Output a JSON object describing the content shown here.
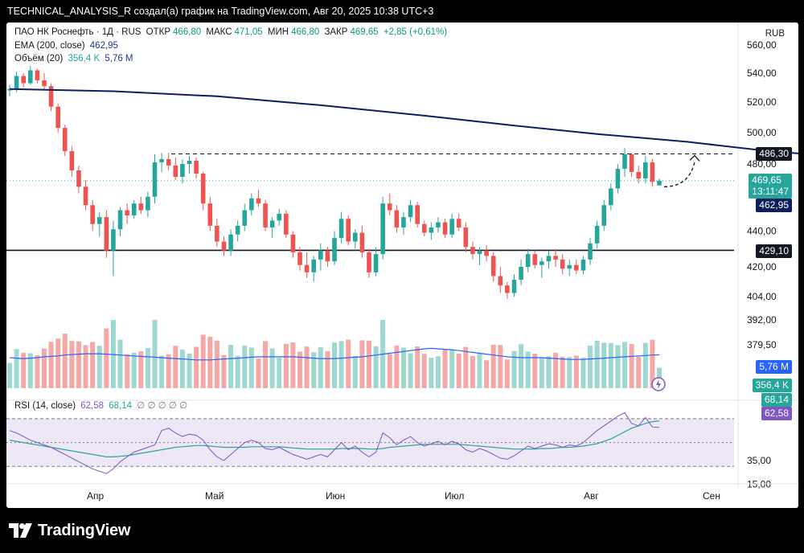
{
  "header": {
    "caption": "TECHNICAL_ANALYSIS_R создал(а) график на TradingView.com, Авг 20, 2025 10:38 UTC+3"
  },
  "legend": {
    "symbol": "ПАО НК Роснефть · 1Д · RUS",
    "open_label": "ОТКР",
    "open": "466,80",
    "high_label": "МАКС",
    "high": "471,05",
    "low_label": "МИН",
    "low": "466,80",
    "close_label": "ЗАКР",
    "close": "469,65",
    "change": "+2,85 (+0,61%)",
    "ema_label": "EMA (200, close)",
    "ema_value": "462,95",
    "volume_label": "Объём (20)",
    "volume_value": "356,4 K",
    "volume_ma_value": "5,76 M",
    "rsi_label": "RSI (14, close)",
    "rsi_value": "62,58",
    "rsi_ma_value": "68,14",
    "rsi_hidden": "∅ ∅ ∅ ∅ ∅"
  },
  "currency": "RUB",
  "price_axis": {
    "ticks": [
      "560,00",
      "540,00",
      "520,00",
      "500,00",
      "480,00",
      "440,00",
      "420,00",
      "404,00",
      "392,00",
      "379,50"
    ],
    "tick_values": [
      560,
      540,
      520,
      500,
      480,
      440,
      420,
      404,
      392,
      379.5
    ],
    "labels": {
      "resistance": "486,30",
      "last_price": "469,65",
      "countdown": "13:11:47",
      "ema": "462,95",
      "support": "429,10",
      "volume_ma": "5,76 M",
      "volume": "356,4 K",
      "rsi_ma": "68,14",
      "rsi": "62,58"
    }
  },
  "rsi_axis": {
    "ticks": [
      "35,00",
      "15,00"
    ],
    "tick_values": [
      35,
      15
    ]
  },
  "time_axis": [
    "Апр",
    "Май",
    "Июн",
    "Июл",
    "Авг",
    "Сен"
  ],
  "colors": {
    "up": "#26a69a",
    "down": "#ef5350",
    "ema": "#0d1e5c",
    "vol_ma": "#2962ff",
    "rsi": "#7e57c2",
    "rsi_ma": "#26a69a",
    "rsi_band": "#ede7f6",
    "resistance_label": "#131722",
    "last_price_label": "#26a69a",
    "ema_label": "#0d1e5c",
    "vol_ma_label": "#2962ff",
    "rsi_label": "#7e57c2"
  },
  "footer": {
    "brand": "TradingView"
  },
  "chart_data": {
    "type": "candlestick",
    "title": "ПАО НК Роснефть · 1Д · RUS",
    "xlabel": "",
    "ylabel": "",
    "log_scale": true,
    "ylim": [
      404,
      560
    ],
    "x_ticks": [
      "Апр",
      "Май",
      "Июн",
      "Июл",
      "Авг",
      "Сен"
    ],
    "grid": true,
    "legend_placement": "top-left",
    "series": [
      {
        "name": "EMA (200, close)",
        "points": [
          [
            0,
            529
          ],
          [
            15,
            527.5
          ],
          [
            30,
            524
          ],
          [
            45,
            518
          ],
          [
            60,
            511
          ],
          [
            72,
            505
          ],
          [
            85,
            499
          ],
          [
            98,
            494
          ],
          [
            110,
            488
          ],
          [
            122,
            484
          ],
          [
            134,
            479
          ],
          [
            146,
            474.6
          ],
          [
            158,
            470.3
          ],
          [
            167,
            466.8
          ],
          [
            174,
            464.0
          ],
          [
            180,
            462.95
          ]
        ]
      }
    ],
    "levels": [
      {
        "name": "resistance",
        "value": 486.3
      },
      {
        "name": "support",
        "value": 429.1
      }
    ],
    "last": {
      "open": 466.8,
      "high": 471.05,
      "low": 466.8,
      "close": 469.65,
      "change": 2.85,
      "change_pct": 0.61
    },
    "candles": [
      [
        528,
        532,
        524,
        529
      ],
      [
        529,
        541,
        527,
        538
      ],
      [
        538,
        540,
        530,
        533
      ],
      [
        533,
        545,
        532,
        542
      ],
      [
        542,
        543,
        533,
        535
      ],
      [
        535,
        540,
        528,
        531
      ],
      [
        531,
        533,
        514,
        517
      ],
      [
        517,
        519,
        500,
        503
      ],
      [
        503,
        505,
        485,
        488
      ],
      [
        488,
        491,
        472,
        476
      ],
      [
        476,
        479,
        462,
        466
      ],
      [
        466,
        470,
        452,
        455
      ],
      [
        455,
        458,
        440,
        444
      ],
      [
        444,
        451,
        437,
        448
      ],
      [
        448,
        452,
        425,
        429
      ],
      [
        429,
        446,
        415,
        441
      ],
      [
        441,
        454,
        437,
        452
      ],
      [
        452,
        456,
        444,
        449
      ],
      [
        449,
        458,
        447,
        456
      ],
      [
        456,
        460,
        450,
        452
      ],
      [
        452,
        463,
        448,
        460
      ],
      [
        460,
        486,
        456,
        481
      ],
      [
        481,
        487,
        475,
        483
      ],
      [
        483,
        487,
        476,
        479
      ],
      [
        479,
        484,
        470,
        472
      ],
      [
        472,
        483,
        468,
        480
      ],
      [
        480,
        485,
        474,
        482
      ],
      [
        482,
        484,
        471,
        474
      ],
      [
        474,
        475,
        452,
        456
      ],
      [
        456,
        460,
        440,
        443
      ],
      [
        443,
        447,
        431,
        434
      ],
      [
        434,
        437,
        426,
        429
      ],
      [
        429,
        441,
        426,
        438
      ],
      [
        438,
        446,
        434,
        443
      ],
      [
        443,
        456,
        440,
        452
      ],
      [
        452,
        462,
        449,
        459
      ],
      [
        459,
        464,
        454,
        456
      ],
      [
        456,
        458,
        440,
        442
      ],
      [
        442,
        448,
        436,
        446
      ],
      [
        446,
        453,
        443,
        450
      ],
      [
        450,
        452,
        436,
        438
      ],
      [
        438,
        440,
        425,
        428
      ],
      [
        428,
        431,
        418,
        421
      ],
      [
        421,
        428,
        414,
        417
      ],
      [
        417,
        426,
        412,
        424
      ],
      [
        424,
        433,
        418,
        429
      ],
      [
        429,
        431,
        420,
        423
      ],
      [
        423,
        440,
        421,
        436
      ],
      [
        436,
        451,
        433,
        447
      ],
      [
        447,
        449,
        432,
        434
      ],
      [
        434,
        441,
        430,
        439
      ],
      [
        439,
        443,
        425,
        428
      ],
      [
        428,
        430,
        414,
        417
      ],
      [
        417,
        431,
        415,
        427
      ],
      [
        427,
        460,
        424,
        456
      ],
      [
        456,
        462,
        449,
        452
      ],
      [
        452,
        455,
        439,
        442
      ],
      [
        442,
        451,
        438,
        448
      ],
      [
        448,
        458,
        445,
        455
      ],
      [
        455,
        457,
        442,
        444
      ],
      [
        444,
        446,
        437,
        439
      ],
      [
        439,
        445,
        435,
        442
      ],
      [
        442,
        448,
        439,
        445
      ],
      [
        445,
        447,
        436,
        438
      ],
      [
        438,
        450,
        436,
        447
      ],
      [
        447,
        450,
        440,
        442
      ],
      [
        442,
        445,
        428,
        431
      ],
      [
        431,
        434,
        424,
        427
      ],
      [
        427,
        431,
        421,
        429
      ],
      [
        429,
        432,
        423,
        426
      ],
      [
        426,
        428,
        412,
        415
      ],
      [
        415,
        420,
        406,
        410
      ],
      [
        410,
        412,
        403,
        406
      ],
      [
        406,
        416,
        404,
        413
      ],
      [
        413,
        424,
        410,
        420
      ],
      [
        420,
        430,
        417,
        427
      ],
      [
        427,
        429,
        419,
        421
      ],
      [
        421,
        425,
        414,
        423
      ],
      [
        423,
        429,
        419,
        426
      ],
      [
        426,
        430,
        420,
        424
      ],
      [
        424,
        427,
        416,
        419
      ],
      [
        419,
        424,
        415,
        421
      ],
      [
        421,
        424,
        416,
        418
      ],
      [
        418,
        426,
        416,
        424
      ],
      [
        424,
        436,
        421,
        433
      ],
      [
        433,
        446,
        430,
        443
      ],
      [
        443,
        458,
        440,
        455
      ],
      [
        455,
        468,
        452,
        465
      ],
      [
        465,
        480,
        462,
        477
      ],
      [
        477,
        490,
        472,
        486
      ],
      [
        486,
        487,
        472,
        475
      ],
      [
        475,
        479,
        468,
        471
      ],
      [
        471,
        485,
        468,
        481
      ],
      [
        481,
        483,
        466,
        469
      ],
      [
        466.8,
        471.05,
        466.8,
        469.65
      ]
    ],
    "volume_ma": [
      30,
      29.5,
      29,
      29.5,
      30,
      31,
      31.5,
      32,
      33,
      33.5,
      34,
      34.5,
      34.5,
      34.5,
      34,
      33.5,
      33,
      32.5,
      32,
      31.5,
      31,
      30.5,
      30,
      29.5,
      29,
      28.5,
      28,
      27.5,
      27.5,
      27.5,
      28,
      28.5,
      29,
      29.5,
      30,
      30.5,
      31,
      31,
      31,
      31,
      31,
      31,
      30.5,
      30,
      29.5,
      29,
      29,
      29,
      29.5,
      30,
      30.5,
      31,
      32,
      33,
      34,
      35,
      36,
      37,
      38,
      39,
      40,
      40.5,
      40,
      39.5,
      39,
      38,
      37,
      36,
      35,
      34,
      33,
      32,
      31,
      30.5,
      30,
      30,
      30,
      30,
      29.5,
      29,
      28.5,
      28,
      28,
      28,
      28.5,
      29,
      29.5,
      30,
      30.5,
      31,
      31.5,
      32,
      32.5,
      33,
      33.2
    ],
    "rsi": [
      60,
      58,
      55,
      52,
      50,
      48,
      46,
      43,
      40,
      37,
      34,
      31,
      28,
      26,
      24,
      28,
      34,
      38,
      42,
      44,
      46,
      48,
      60,
      62,
      58,
      55,
      57,
      56,
      52,
      44,
      38,
      35,
      40,
      45,
      50,
      52,
      50,
      45,
      44,
      46,
      43,
      40,
      38,
      36,
      38,
      40,
      38,
      44,
      50,
      44,
      47,
      42,
      38,
      42,
      58,
      54,
      48,
      52,
      55,
      50,
      47,
      49,
      51,
      48,
      51,
      49,
      44,
      42,
      45,
      43,
      40,
      37,
      36,
      39,
      43,
      47,
      45,
      47,
      49,
      48,
      46,
      48,
      47,
      50,
      55,
      60,
      64,
      68,
      72,
      75,
      66,
      64,
      71,
      63,
      62.58
    ],
    "rsi_ma": [
      52,
      51,
      50,
      49,
      48,
      47,
      46,
      45,
      44,
      43,
      42,
      41,
      40,
      39,
      38,
      38,
      38.5,
      39,
      40,
      41,
      42,
      43,
      44,
      45,
      46,
      46.5,
      47,
      47.5,
      47.5,
      47,
      46.5,
      46,
      46,
      46,
      46,
      46.5,
      46.5,
      46.5,
      46.5,
      46.5,
      46,
      45.5,
      45,
      44.5,
      44.5,
      44.5,
      44.5,
      44.5,
      45,
      45,
      45,
      45,
      44.5,
      44.5,
      45,
      46,
      46.5,
      47,
      47.5,
      48,
      48.5,
      48.5,
      48.5,
      48.5,
      48.5,
      48.5,
      48,
      47.5,
      47,
      46.5,
      46,
      45.5,
      45,
      44.5,
      44.5,
      44.5,
      44.5,
      45,
      45,
      45.5,
      46,
      46,
      46.5,
      47,
      48,
      49,
      51,
      53,
      56,
      59,
      62,
      64,
      66,
      67.5,
      68.14
    ]
  }
}
